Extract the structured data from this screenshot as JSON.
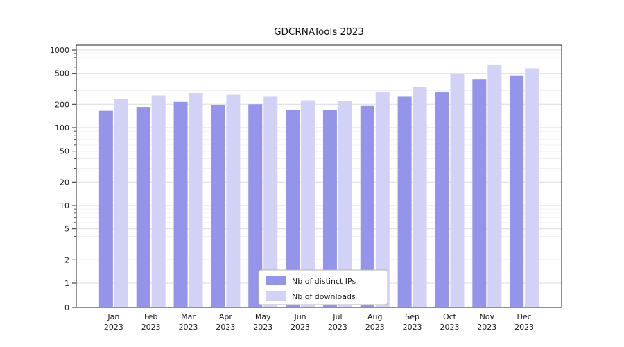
{
  "chart_data": {
    "type": "bar",
    "title": "GDCRNATools 2023",
    "yscale": "symlog",
    "ylim": [
      0,
      1150
    ],
    "y_ticks": [
      0,
      1,
      2,
      5,
      10,
      20,
      50,
      100,
      200,
      500,
      1000
    ],
    "y_minor_ticks": [
      3,
      4,
      6,
      7,
      8,
      9,
      30,
      40,
      60,
      70,
      80,
      90,
      300,
      400,
      600,
      700,
      800,
      900
    ],
    "grid": true,
    "legend_position": "lower center",
    "categories": [
      "Jan\n2023",
      "Feb\n2023",
      "Mar\n2023",
      "Apr\n2023",
      "May\n2023",
      "Jun\n2023",
      "Jul\n2023",
      "Aug\n2023",
      "Sep\n2023",
      "Oct\n2023",
      "Nov\n2023",
      "Dec\n2023"
    ],
    "series": [
      {
        "name": "Nb of distinct IPs",
        "color": "#9494ea",
        "values": [
          165,
          185,
          215,
          195,
          200,
          170,
          168,
          190,
          250,
          285,
          420,
          470
        ]
      },
      {
        "name": "Nb of downloads",
        "color": "#d2d2f7",
        "values": [
          235,
          260,
          280,
          265,
          250,
          225,
          220,
          285,
          330,
          490,
          650,
          580
        ]
      }
    ],
    "colors": {
      "grid_major": "#dcdcdc",
      "grid_minor": "#efefef",
      "axis": "#222222",
      "background": "#ffffff",
      "legend_border": "#b3b3b3"
    }
  }
}
